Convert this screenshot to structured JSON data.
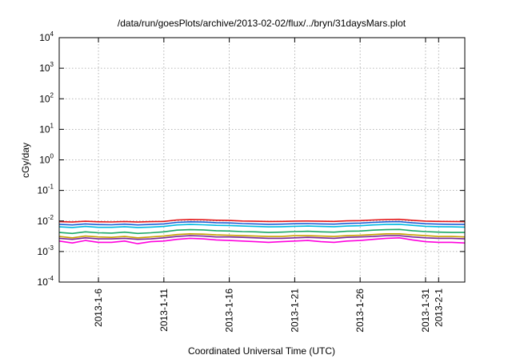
{
  "chart_data": {
    "type": "line",
    "title": "/data/run/goesPlots/archive/2013-02-02/flux/../bryn/31daysMars.plot",
    "xlabel": "Coordinated Universal Time (UTC)",
    "ylabel": "cGy/day",
    "yscale": "log",
    "ylim": [
      0.0001,
      10000
    ],
    "xlim": [
      "2013-01-03",
      "2013-02-03"
    ],
    "grid": true,
    "x_ticks": [
      "2013-1-6",
      "2013-1-11",
      "2013-1-16",
      "2013-1-21",
      "2013-1-26",
      "2013-1-31",
      "2013-2-1"
    ],
    "y_ticks": [
      {
        "base": "10",
        "exp": "-4",
        "value": 0.0001
      },
      {
        "base": "10",
        "exp": "-3",
        "value": 0.001
      },
      {
        "base": "10",
        "exp": "-2",
        "value": 0.01
      },
      {
        "base": "10",
        "exp": "-1",
        "value": 0.1
      },
      {
        "base": "10",
        "exp": "0",
        "value": 1
      },
      {
        "base": "10",
        "exp": "1",
        "value": 10
      },
      {
        "base": "10",
        "exp": "2",
        "value": 100
      },
      {
        "base": "10",
        "exp": "3",
        "value": 1000
      },
      {
        "base": "10",
        "exp": "4",
        "value": 10000
      }
    ],
    "x": [
      "2013-01-03",
      "2013-01-04",
      "2013-01-05",
      "2013-01-06",
      "2013-01-07",
      "2013-01-08",
      "2013-01-09",
      "2013-01-10",
      "2013-01-11",
      "2013-01-12",
      "2013-01-13",
      "2013-01-14",
      "2013-01-15",
      "2013-01-16",
      "2013-01-17",
      "2013-01-18",
      "2013-01-19",
      "2013-01-20",
      "2013-01-21",
      "2013-01-22",
      "2013-01-23",
      "2013-01-24",
      "2013-01-25",
      "2013-01-26",
      "2013-01-27",
      "2013-01-28",
      "2013-01-29",
      "2013-01-30",
      "2013-01-31",
      "2013-02-01",
      "2013-02-02",
      "2013-02-03"
    ],
    "series": [
      {
        "color": "#e41a1c",
        "values": [
          0.0095,
          0.0092,
          0.0098,
          0.0094,
          0.0093,
          0.0096,
          0.0092,
          0.0095,
          0.0097,
          0.0108,
          0.0112,
          0.011,
          0.0106,
          0.0104,
          0.01,
          0.0098,
          0.0096,
          0.0097,
          0.0099,
          0.01,
          0.0098,
          0.0097,
          0.0101,
          0.0103,
          0.0108,
          0.0112,
          0.0113,
          0.0105,
          0.0099,
          0.0097,
          0.0096,
          0.0095
        ]
      },
      {
        "color": "#1f5fd6",
        "values": [
          0.0078,
          0.0074,
          0.008,
          0.0076,
          0.0075,
          0.0079,
          0.0074,
          0.0077,
          0.008,
          0.009,
          0.0094,
          0.0092,
          0.0088,
          0.0086,
          0.0082,
          0.008,
          0.0078,
          0.0079,
          0.0081,
          0.0082,
          0.008,
          0.0079,
          0.0083,
          0.0085,
          0.009,
          0.0094,
          0.0095,
          0.0087,
          0.0081,
          0.0079,
          0.0078,
          0.0077
        ]
      },
      {
        "color": "#00b8e0",
        "values": [
          0.0064,
          0.0061,
          0.0066,
          0.0062,
          0.0062,
          0.0065,
          0.0061,
          0.0063,
          0.0066,
          0.0074,
          0.0077,
          0.0075,
          0.0072,
          0.0071,
          0.0068,
          0.0066,
          0.0064,
          0.0065,
          0.0067,
          0.0068,
          0.0066,
          0.0065,
          0.0068,
          0.007,
          0.0074,
          0.0077,
          0.0078,
          0.0072,
          0.0067,
          0.0065,
          0.0064,
          0.0063
        ]
      },
      {
        "color": "#1aa866",
        "values": [
          0.0042,
          0.0039,
          0.0044,
          0.0041,
          0.004,
          0.0043,
          0.0039,
          0.0041,
          0.0044,
          0.005,
          0.0052,
          0.0051,
          0.0048,
          0.0047,
          0.0045,
          0.0044,
          0.0042,
          0.0043,
          0.0045,
          0.0046,
          0.0044,
          0.0043,
          0.0046,
          0.0047,
          0.005,
          0.0052,
          0.0053,
          0.0048,
          0.0045,
          0.0043,
          0.0042,
          0.0042
        ]
      },
      {
        "color": "#c8a000",
        "values": [
          0.0031,
          0.0028,
          0.0032,
          0.003,
          0.0029,
          0.0031,
          0.0028,
          0.003,
          0.0032,
          0.0036,
          0.0038,
          0.0037,
          0.0035,
          0.0034,
          0.0033,
          0.0032,
          0.0031,
          0.0031,
          0.0033,
          0.0033,
          0.0032,
          0.0031,
          0.0033,
          0.0034,
          0.0036,
          0.0038,
          0.0038,
          0.0035,
          0.0033,
          0.0031,
          0.0031,
          0.003
        ]
      },
      {
        "color": "#7a2a9a",
        "values": [
          0.0027,
          0.0025,
          0.0028,
          0.0026,
          0.0026,
          0.0027,
          0.0025,
          0.0026,
          0.0028,
          0.0031,
          0.0033,
          0.0032,
          0.003,
          0.003,
          0.0029,
          0.0028,
          0.0027,
          0.0027,
          0.0028,
          0.0029,
          0.0028,
          0.0027,
          0.0029,
          0.003,
          0.0031,
          0.0033,
          0.0033,
          0.003,
          0.0028,
          0.0027,
          0.0027,
          0.0026
        ]
      },
      {
        "color": "#ff00dd",
        "values": [
          0.0022,
          0.0019,
          0.0023,
          0.002,
          0.002,
          0.0022,
          0.0018,
          0.0021,
          0.0022,
          0.0025,
          0.0027,
          0.0026,
          0.0024,
          0.0023,
          0.0022,
          0.0021,
          0.002,
          0.0021,
          0.0022,
          0.0023,
          0.0021,
          0.002,
          0.0022,
          0.0023,
          0.0025,
          0.0027,
          0.0028,
          0.0024,
          0.0021,
          0.002,
          0.002,
          0.0019
        ]
      }
    ]
  }
}
